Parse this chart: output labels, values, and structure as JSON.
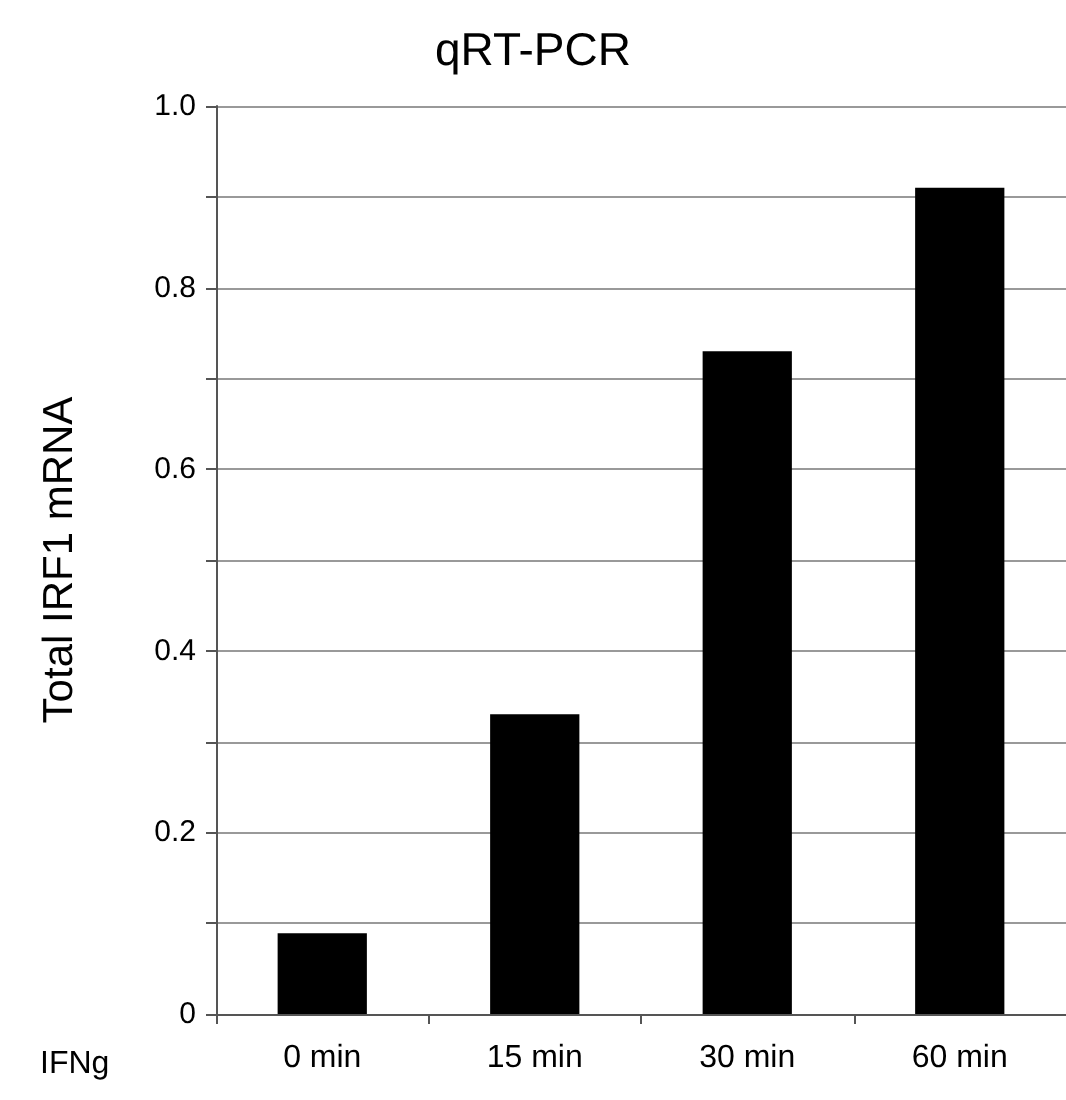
{
  "chart_data": {
    "type": "bar",
    "title": "qRT-PCR",
    "xlabel": "IFNg",
    "ylabel": "Total IRF1 mRNA",
    "categories": [
      "0 min",
      "15 min",
      "30 min",
      "60 min"
    ],
    "values": [
      0.089,
      0.33,
      0.73,
      0.91
    ],
    "color": "#000000",
    "ylim": [
      0,
      1
    ],
    "yticks": [
      0,
      {
        "value": 0.1,
        "label": null
      },
      0.2,
      {
        "value": 0.3,
        "label": null
      },
      0.4,
      {
        "value": 0.5,
        "label": null
      },
      0.6,
      {
        "value": 0.7,
        "label": null
      },
      0.8,
      {
        "value": 0.9,
        "label": null
      },
      {
        "value": 1,
        "label": "1.0"
      }
    ],
    "grid": "y"
  }
}
